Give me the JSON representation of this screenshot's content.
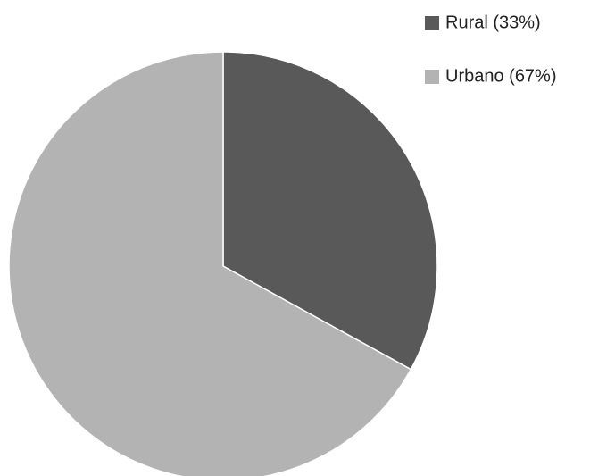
{
  "chart_data": {
    "type": "pie",
    "categories": [
      "Rural (33%)",
      "Urbano (67%)"
    ],
    "values": [
      33,
      67
    ],
    "colors": [
      "#595959",
      "#b3b3b3"
    ],
    "legend": "top-right"
  }
}
